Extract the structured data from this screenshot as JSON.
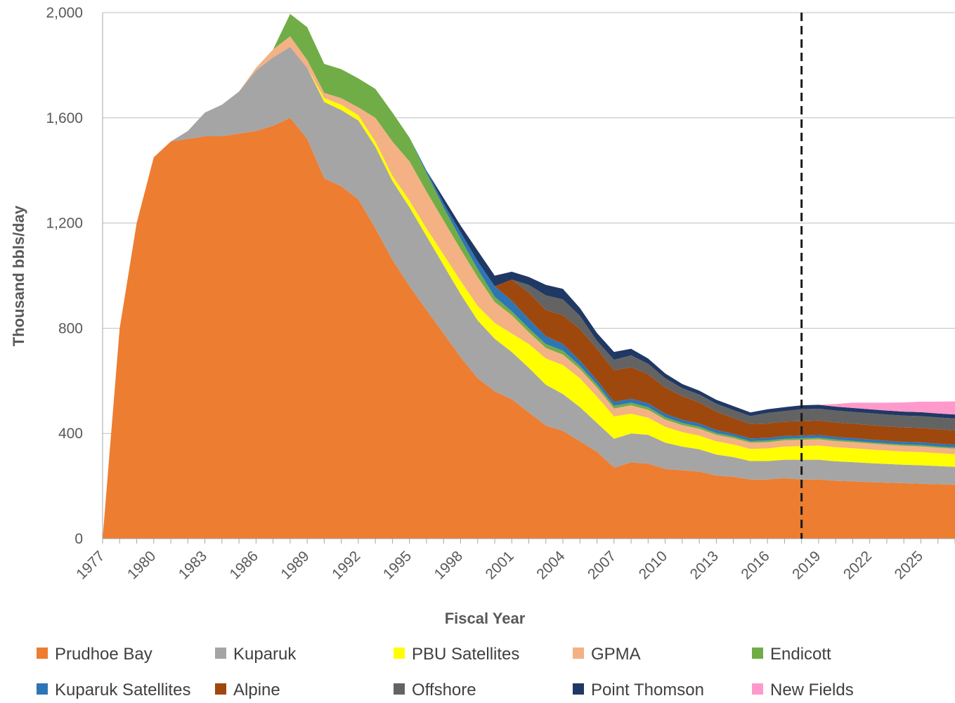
{
  "chart_data": {
    "type": "area",
    "stacked": true,
    "title": "",
    "xlabel": "Fiscal Year",
    "ylabel": "Thousand bbls/day",
    "xlim": [
      1977,
      2027
    ],
    "ylim": [
      0,
      2000
    ],
    "y_ticks": [
      0,
      400,
      800,
      1200,
      1600,
      2000
    ],
    "y_tick_labels": [
      "0",
      "400",
      "800",
      "1,200",
      "1,600",
      "2,000"
    ],
    "x_ticks": [
      1977,
      1980,
      1983,
      1986,
      1989,
      1992,
      1995,
      1998,
      2001,
      2004,
      2007,
      2010,
      2013,
      2016,
      2019,
      2022,
      2025
    ],
    "x_tick_labels": [
      "1977",
      "1980",
      "1983",
      "1986",
      "1989",
      "1992",
      "1995",
      "1998",
      "2001",
      "2004",
      "2007",
      "2010",
      "2013",
      "2016",
      "2019",
      "2022",
      "2025"
    ],
    "grid": "horizontal",
    "legend_position": "bottom",
    "forecast_line_x": 2018,
    "x": [
      1977,
      1978,
      1979,
      1980,
      1981,
      1982,
      1983,
      1984,
      1985,
      1986,
      1987,
      1988,
      1989,
      1990,
      1991,
      1992,
      1993,
      1994,
      1995,
      1996,
      1997,
      1998,
      1999,
      2000,
      2001,
      2002,
      2003,
      2004,
      2005,
      2006,
      2007,
      2008,
      2009,
      2010,
      2011,
      2012,
      2013,
      2014,
      2015,
      2016,
      2017,
      2018,
      2019,
      2020,
      2021,
      2022,
      2023,
      2024,
      2025,
      2026,
      2027
    ],
    "series": [
      {
        "name": "Prudhoe Bay",
        "color": "#ED7D31",
        "values": [
          0,
          800,
          1200,
          1450,
          1510,
          1520,
          1530,
          1530,
          1540,
          1550,
          1570,
          1600,
          1520,
          1370,
          1340,
          1290,
          1180,
          1060,
          960,
          870,
          780,
          690,
          610,
          560,
          530,
          480,
          430,
          410,
          370,
          330,
          270,
          290,
          285,
          265,
          260,
          255,
          240,
          235,
          225,
          225,
          230,
          225,
          225,
          220,
          218,
          215,
          213,
          211,
          209,
          207,
          205
        ]
      },
      {
        "name": "Kuparuk",
        "color": "#A5A5A5",
        "values": [
          0,
          0,
          0,
          0,
          0,
          30,
          90,
          120,
          160,
          230,
          260,
          270,
          270,
          290,
          290,
          300,
          310,
          300,
          300,
          280,
          260,
          240,
          220,
          200,
          180,
          170,
          155,
          140,
          130,
          110,
          110,
          110,
          110,
          100,
          90,
          85,
          80,
          75,
          70,
          70,
          70,
          75,
          75,
          74,
          73,
          72,
          71,
          70,
          70,
          69,
          68
        ]
      },
      {
        "name": "PBU Satellites",
        "color": "#FFFF00",
        "values": [
          0,
          0,
          0,
          0,
          0,
          0,
          0,
          0,
          0,
          0,
          0,
          0,
          0,
          15,
          20,
          20,
          20,
          20,
          25,
          30,
          40,
          50,
          55,
          60,
          70,
          90,
          100,
          110,
          110,
          100,
          85,
          75,
          65,
          60,
          55,
          52,
          50,
          48,
          46,
          48,
          50,
          52,
          54,
          54,
          53,
          52,
          51,
          50,
          50,
          49,
          48
        ]
      },
      {
        "name": "GPMA",
        "color": "#F4B183",
        "values": [
          0,
          0,
          0,
          0,
          0,
          0,
          0,
          0,
          0,
          10,
          30,
          40,
          30,
          20,
          25,
          30,
          90,
          130,
          150,
          140,
          130,
          120,
          110,
          80,
          70,
          45,
          40,
          40,
          35,
          35,
          30,
          32,
          30,
          28,
          27,
          26,
          25,
          24,
          24,
          24,
          24,
          24,
          24,
          23,
          23,
          23,
          22,
          22,
          22,
          21,
          21
        ]
      },
      {
        "name": "Endicott",
        "color": "#70AD47",
        "values": [
          0,
          0,
          0,
          0,
          0,
          0,
          0,
          0,
          0,
          0,
          0,
          85,
          125,
          110,
          110,
          110,
          110,
          110,
          90,
          70,
          50,
          40,
          30,
          20,
          15,
          15,
          15,
          15,
          12,
          12,
          10,
          10,
          10,
          9,
          8,
          8,
          7,
          7,
          6,
          6,
          6,
          6,
          6,
          6,
          5,
          5,
          5,
          5,
          5,
          5,
          5
        ]
      },
      {
        "name": "Kuparuk Satellites",
        "color": "#2E75B6",
        "values": [
          0,
          0,
          0,
          0,
          0,
          0,
          0,
          0,
          0,
          0,
          0,
          0,
          0,
          0,
          0,
          0,
          0,
          0,
          0,
          10,
          15,
          25,
          30,
          40,
          40,
          35,
          30,
          25,
          20,
          15,
          15,
          15,
          15,
          13,
          12,
          12,
          11,
          10,
          10,
          10,
          10,
          10,
          10,
          10,
          10,
          10,
          10,
          10,
          10,
          10,
          10
        ]
      },
      {
        "name": "Alpine",
        "color": "#9E480E",
        "values": [
          0,
          0,
          0,
          0,
          0,
          0,
          0,
          0,
          0,
          0,
          0,
          0,
          0,
          0,
          0,
          0,
          0,
          0,
          0,
          0,
          0,
          0,
          0,
          0,
          80,
          100,
          100,
          110,
          120,
          120,
          120,
          120,
          110,
          100,
          90,
          80,
          70,
          60,
          55,
          55,
          55,
          55,
          55,
          55,
          55,
          55,
          55,
          55,
          55,
          55,
          55
        ]
      },
      {
        "name": "Offshore",
        "color": "#636363",
        "values": [
          0,
          0,
          0,
          0,
          0,
          0,
          0,
          0,
          0,
          0,
          0,
          0,
          0,
          0,
          0,
          0,
          0,
          0,
          0,
          0,
          0,
          0,
          0,
          0,
          0,
          30,
          55,
          60,
          50,
          30,
          40,
          45,
          40,
          35,
          30,
          30,
          30,
          30,
          30,
          40,
          40,
          45,
          45,
          45,
          45,
          45,
          45,
          45,
          45,
          45,
          45
        ]
      },
      {
        "name": "Point Thomson",
        "color": "#203864",
        "values": [
          0,
          0,
          0,
          0,
          0,
          0,
          0,
          0,
          0,
          0,
          0,
          0,
          0,
          0,
          0,
          0,
          0,
          0,
          0,
          0,
          20,
          25,
          40,
          40,
          30,
          30,
          40,
          40,
          30,
          30,
          30,
          25,
          20,
          18,
          16,
          15,
          15,
          15,
          14,
          14,
          15,
          15,
          15,
          15,
          15,
          15,
          15,
          15,
          15,
          15,
          15
        ]
      },
      {
        "name": "New Fields",
        "color": "#FF99CC",
        "values": [
          0,
          0,
          0,
          0,
          0,
          0,
          0,
          0,
          0,
          0,
          0,
          0,
          0,
          0,
          0,
          0,
          0,
          0,
          0,
          0,
          0,
          0,
          0,
          0,
          0,
          0,
          0,
          0,
          0,
          0,
          0,
          0,
          0,
          0,
          0,
          0,
          0,
          0,
          0,
          0,
          0,
          0,
          0,
          10,
          20,
          25,
          30,
          35,
          40,
          45,
          50
        ]
      }
    ]
  }
}
